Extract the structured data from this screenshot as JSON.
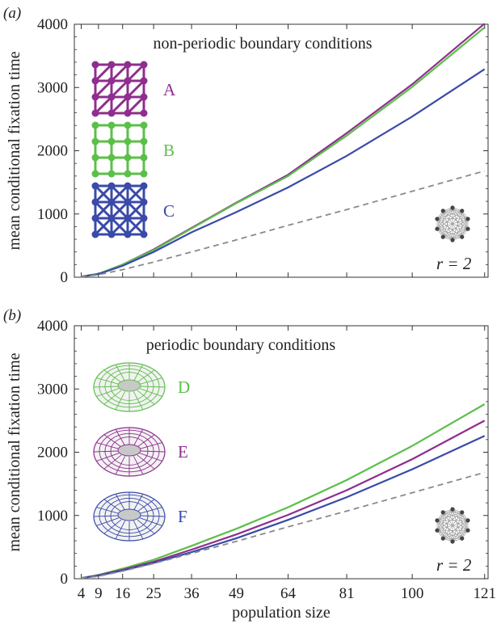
{
  "chart_data": [
    {
      "panel_label": "(a)",
      "type": "line",
      "title": "non-periodic boundary conditions",
      "ylabel": "mean conditional fixation time",
      "xlabel": "",
      "ylim": [
        0,
        4000
      ],
      "y_ticks": [
        0,
        1000,
        2000,
        3000,
        4000
      ],
      "annotation": "r = 2",
      "legend": [
        {
          "label": "A",
          "color": "#8e2e8e",
          "icon": "triangular-lattice-icon"
        },
        {
          "label": "B",
          "color": "#5cbf4a",
          "icon": "square-lattice-icon"
        },
        {
          "label": "C",
          "color": "#3a4aa8",
          "icon": "king-lattice-icon"
        }
      ],
      "series": [
        {
          "name": "A",
          "color": "#8e2e8e",
          "dash": false,
          "x": [
            4,
            9,
            16,
            25,
            36,
            49,
            64,
            81,
            100,
            121
          ],
          "y": [
            10,
            55,
            200,
            440,
            780,
            1180,
            1620,
            2280,
            3050,
            4010
          ]
        },
        {
          "name": "B",
          "color": "#5cbf4a",
          "dash": false,
          "x": [
            4,
            9,
            16,
            25,
            36,
            49,
            64,
            81,
            100,
            121
          ],
          "y": [
            10,
            55,
            200,
            430,
            770,
            1170,
            1600,
            2240,
            3010,
            3950
          ]
        },
        {
          "name": "C",
          "color": "#3a4aa8",
          "dash": false,
          "x": [
            4,
            9,
            16,
            25,
            36,
            49,
            64,
            81,
            100,
            121
          ],
          "y": [
            10,
            50,
            180,
            400,
            710,
            1030,
            1420,
            1920,
            2540,
            3290
          ]
        },
        {
          "name": "complete graph",
          "color": "#8a8a8a",
          "dash": true,
          "x": [
            4,
            9,
            16,
            25,
            36,
            49,
            64,
            81,
            100,
            121
          ],
          "y": [
            10,
            40,
            120,
            240,
            400,
            590,
            820,
            1070,
            1360,
            1680
          ]
        }
      ]
    },
    {
      "panel_label": "(b)",
      "type": "line",
      "title": "periodic boundary conditions",
      "ylabel": "mean conditional fixation time",
      "xlabel": "population size",
      "ylim": [
        0,
        4000
      ],
      "y_ticks": [
        0,
        1000,
        2000,
        3000,
        4000
      ],
      "x_ticks": [
        4,
        9,
        16,
        25,
        36,
        49,
        64,
        81,
        100,
        121
      ],
      "annotation": "r = 2",
      "legend": [
        {
          "label": "D",
          "color": "#5cbf4a",
          "icon": "torus-icon"
        },
        {
          "label": "E",
          "color": "#8e2e8e",
          "icon": "torus-icon"
        },
        {
          "label": "F",
          "color": "#3a4aa8",
          "icon": "torus-icon"
        }
      ],
      "series": [
        {
          "name": "D",
          "color": "#5cbf4a",
          "dash": false,
          "x": [
            4,
            9,
            16,
            25,
            36,
            49,
            64,
            81,
            100,
            121
          ],
          "y": [
            10,
            60,
            160,
            300,
            520,
            790,
            1130,
            1560,
            2100,
            2760
          ]
        },
        {
          "name": "E",
          "color": "#8e2e8e",
          "dash": false,
          "x": [
            4,
            9,
            16,
            25,
            36,
            49,
            64,
            81,
            100,
            121
          ],
          "y": [
            10,
            55,
            140,
            270,
            460,
            700,
            1010,
            1400,
            1890,
            2500
          ]
        },
        {
          "name": "F",
          "color": "#3a4aa8",
          "dash": false,
          "x": [
            4,
            9,
            16,
            25,
            36,
            49,
            64,
            81,
            100,
            121
          ],
          "y": [
            10,
            50,
            130,
            250,
            420,
            640,
            930,
            1290,
            1730,
            2260
          ]
        },
        {
          "name": "complete graph",
          "color": "#8a8a8a",
          "dash": true,
          "x": [
            4,
            9,
            16,
            25,
            36,
            49,
            64,
            81,
            100,
            121
          ],
          "y": [
            10,
            40,
            120,
            240,
            400,
            590,
            820,
            1070,
            1360,
            1680
          ]
        }
      ]
    }
  ]
}
